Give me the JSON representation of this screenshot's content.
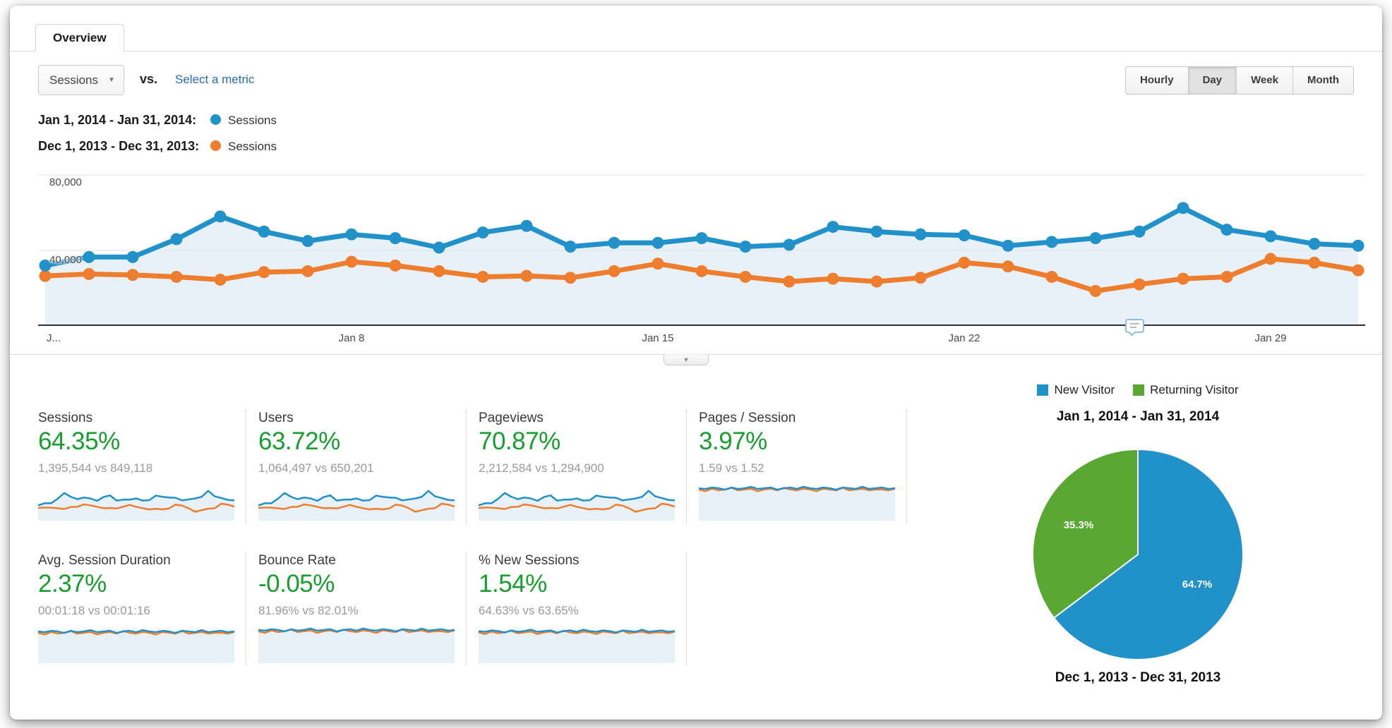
{
  "app": {
    "tab_label": "Overview"
  },
  "toolbar": {
    "metric_selector_value": "Sessions",
    "vs_label": "vs.",
    "select_metric_link": "Select a metric",
    "granularity": [
      {
        "label": "Hourly",
        "selected": false
      },
      {
        "label": "Day",
        "selected": true
      },
      {
        "label": "Week",
        "selected": false
      },
      {
        "label": "Month",
        "selected": false
      }
    ]
  },
  "legend": [
    {
      "date_range": "Jan 1, 2014 - Jan 31, 2014:",
      "metric": "Sessions",
      "color": "#2191c9"
    },
    {
      "date_range": "Dec 1, 2013 - Dec 31, 2013:",
      "metric": "Sessions",
      "color": "#ee7e2e"
    }
  ],
  "chart_data": {
    "type": "line",
    "title": "Sessions by day, Jan 2014 vs Dec 2013",
    "x_unit": "day of month",
    "x": [
      1,
      2,
      3,
      4,
      5,
      6,
      7,
      8,
      9,
      10,
      11,
      12,
      13,
      14,
      15,
      16,
      17,
      18,
      19,
      20,
      21,
      22,
      23,
      24,
      25,
      26,
      27,
      28,
      29,
      30,
      31
    ],
    "x_tick_labels": [
      {
        "label": "J...",
        "day": 1,
        "align": "left"
      },
      {
        "label": "Jan 8",
        "day": 8,
        "align": "center"
      },
      {
        "label": "Jan 15",
        "day": 15,
        "align": "center"
      },
      {
        "label": "Jan 22",
        "day": 22,
        "align": "center"
      },
      {
        "label": "Jan 29",
        "day": 29,
        "align": "center"
      }
    ],
    "ylim": [
      0,
      80000
    ],
    "y_tick_labels": [
      {
        "value": 80000,
        "label": "80,000"
      },
      {
        "value": 40000,
        "label": "40,000"
      }
    ],
    "grid": true,
    "legend_position": "top-left",
    "series": [
      {
        "name": "Sessions (Jan 1, 2014 - Jan 31, 2014)",
        "color": "#2191c9",
        "values": [
          32000,
          36500,
          36500,
          46000,
          58000,
          50000,
          45000,
          48500,
          46500,
          41500,
          49500,
          53000,
          42000,
          44000,
          44000,
          46500,
          42000,
          43000,
          52500,
          50000,
          48500,
          48000,
          42500,
          44500,
          46500,
          50000,
          62500,
          51000,
          47500,
          43500,
          42500
        ]
      },
      {
        "name": "Sessions (Dec 1, 2013 - Dec 31, 2013)",
        "color": "#ee7e2e",
        "values": [
          26500,
          27500,
          27000,
          26000,
          24500,
          28500,
          29000,
          34000,
          32000,
          29000,
          26000,
          26500,
          25500,
          29000,
          33000,
          29000,
          26000,
          23500,
          25000,
          23500,
          25500,
          33500,
          31500,
          26000,
          18500,
          22000,
          25000,
          26000,
          35500,
          33500,
          29500
        ]
      }
    ]
  },
  "cards": [
    {
      "title": "Sessions",
      "change": "64.35%",
      "comparison": "1,395,544 vs 849,118",
      "spark": "volume",
      "spark_base": 0
    },
    {
      "title": "Users",
      "change": "63.72%",
      "comparison": "1,064,497 vs 650,201",
      "spark": "volume",
      "spark_base": 0
    },
    {
      "title": "Pageviews",
      "change": "70.87%",
      "comparison": "2,212,584 vs 1,294,900",
      "spark": "volume",
      "spark_base": 0
    },
    {
      "title": "Pages / Session",
      "change": "3.97%",
      "comparison": "1.59 vs 1.52",
      "spark": "flat",
      "spark_base": 0.15
    },
    {
      "title": "Avg. Session Duration",
      "change": "2.37%",
      "comparison": "00:01:18 vs 00:01:16",
      "spark": "flat",
      "spark_base": 0.17
    },
    {
      "title": "Bounce Rate",
      "change": "-0.05%",
      "comparison": "81.96% vs 82.01%",
      "spark": "flat",
      "spark_base": 0.13
    },
    {
      "title": "% New Sessions",
      "change": "1.54%",
      "comparison": "64.63% vs 63.65%",
      "spark": "flat",
      "spark_base": 0.16
    }
  ],
  "pie": {
    "legend": [
      {
        "label": "New Visitor",
        "color": "#2191c9"
      },
      {
        "label": "Returning Visitor",
        "color": "#58a832"
      }
    ],
    "title": "Jan 1, 2014 - Jan 31, 2014",
    "footer": "Dec 1, 2013 - Dec 31, 2013",
    "chart_data": {
      "type": "pie",
      "slices": [
        {
          "label": "New Visitor",
          "value": 64.7,
          "display": "64.7%",
          "color": "#2191c9"
        },
        {
          "label": "Returning Visitor",
          "value": 35.3,
          "display": "35.3%",
          "color": "#58a832"
        }
      ]
    }
  },
  "icons": {
    "dropdown_arrow": "▼",
    "collapse_arrow": "▼"
  },
  "colors": {
    "blue": "#2191c9",
    "orange": "#ee7e2e",
    "area_fill": "#e8f1f8",
    "positive_green": "#169e2e",
    "pie_green": "#58a832",
    "link_blue": "#2a6cb0",
    "gridline": "#e5e5e5",
    "axis_baseline": "#2f2f2f"
  }
}
